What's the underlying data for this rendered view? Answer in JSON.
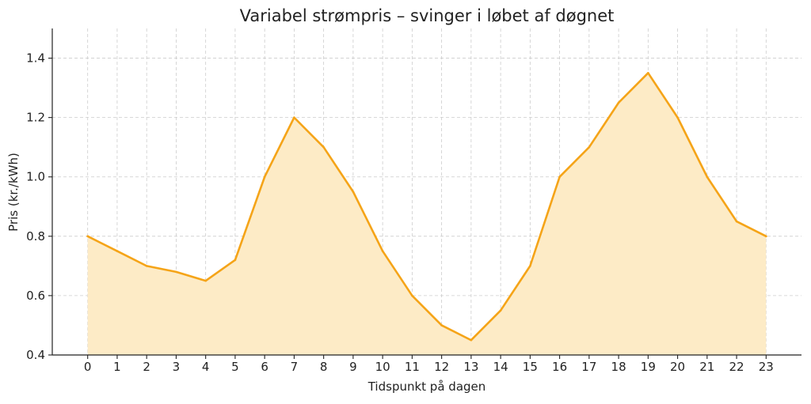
{
  "chart_data": {
    "type": "area",
    "title": "Variabel strømpris – svinger i løbet af døgnet",
    "xlabel": "Tidspunkt på dagen",
    "ylabel": "Pris (kr./kWh)",
    "x": [
      0,
      1,
      2,
      3,
      4,
      5,
      6,
      7,
      8,
      9,
      10,
      11,
      12,
      13,
      14,
      15,
      16,
      17,
      18,
      19,
      20,
      21,
      22,
      23
    ],
    "values": [
      0.8,
      0.75,
      0.7,
      0.68,
      0.65,
      0.72,
      1.0,
      1.2,
      1.1,
      0.95,
      0.75,
      0.6,
      0.5,
      0.45,
      0.55,
      0.7,
      1.0,
      1.1,
      1.25,
      1.35,
      1.2,
      1.0,
      0.85,
      0.8
    ],
    "xlim": [
      -1.2,
      24.2
    ],
    "ylim": [
      0.4,
      1.5
    ],
    "xticks": [
      "0",
      "1",
      "2",
      "3",
      "4",
      "5",
      "6",
      "7",
      "8",
      "9",
      "10",
      "11",
      "12",
      "13",
      "14",
      "15",
      "16",
      "17",
      "18",
      "19",
      "20",
      "21",
      "22",
      "23"
    ],
    "yticks": [
      0.4,
      0.6,
      0.8,
      1.0,
      1.2,
      1.4
    ],
    "ytick_labels": [
      "0.4",
      "0.6",
      "0.8",
      "1.0",
      "1.2",
      "1.4"
    ],
    "grid": true,
    "line_color": "#f5a418",
    "fill_color": "#fdebc6"
  }
}
